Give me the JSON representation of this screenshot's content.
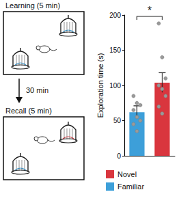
{
  "diagram": {
    "learning": "Learning (5 min)",
    "delay": "30 min",
    "recall": "Recall (5 min)"
  },
  "chart_data": {
    "type": "bar",
    "y_label": "Exploration time (s)",
    "categories": [
      "Familiar",
      "Novel"
    ],
    "values": [
      62,
      104
    ],
    "errors": [
      9,
      14
    ],
    "points": [
      [
        85,
        75,
        72,
        65,
        55,
        50,
        45,
        35
      ],
      [
        188,
        140,
        110,
        100,
        95,
        85,
        70,
        60
      ]
    ],
    "colors": [
      "#3d9fd9",
      "#d9363e"
    ],
    "significance": "*",
    "ylim": [
      0,
      200
    ],
    "yticks": [
      0,
      50,
      100,
      150,
      200
    ],
    "legend": "bottom",
    "tick_labels": "y",
    "grid": false
  }
}
